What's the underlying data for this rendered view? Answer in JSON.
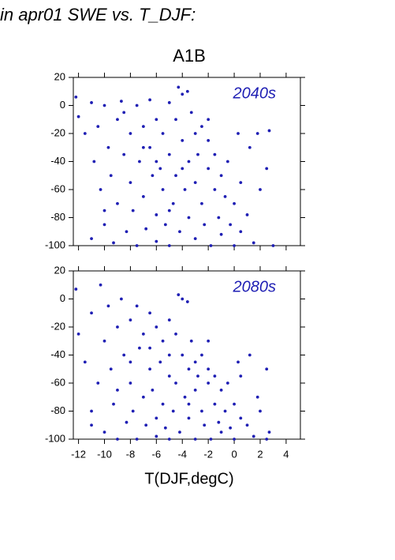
{
  "header": "in apr01 SWE vs. T_DJF:",
  "chart_data": [
    {
      "type": "scatter",
      "title": "A1B",
      "label": "2040s",
      "color": "#1f1fb4",
      "xlim": [
        -12.4,
        5.1
      ],
      "ylim": [
        -100,
        20
      ],
      "xticks": [
        -12,
        -10,
        -8,
        -6,
        -4,
        -2,
        0,
        2,
        4
      ],
      "yticks": [
        -100,
        -80,
        -60,
        -40,
        -20,
        0,
        20
      ],
      "xticklabels": false,
      "x": [
        -12.2,
        -12,
        -11.5,
        -11,
        -10.8,
        -10.5,
        -10.3,
        -10,
        -10,
        -9.7,
        -9.5,
        -9.3,
        -9,
        -9,
        -8.7,
        -8.5,
        -8.3,
        -8,
        -8,
        -7.8,
        -7.5,
        -7.5,
        -7.3,
        -7,
        -7,
        -6.8,
        -6.5,
        -6.5,
        -6.3,
        -6,
        -6,
        -6,
        -5.7,
        -5.5,
        -5.5,
        -5.3,
        -5,
        -5,
        -5,
        -4.7,
        -4.5,
        -4.5,
        -4.3,
        -4.2,
        -4,
        -4,
        -3.8,
        -3.6,
        -3.5,
        -3.5,
        -3.3,
        -3,
        -3,
        -3,
        -2.8,
        -2.5,
        -2.5,
        -2.3,
        -2,
        -2,
        -1.8,
        -1.5,
        -1.5,
        -1.2,
        -1,
        -1,
        -0.7,
        -0.5,
        -0.3,
        0,
        0,
        0.5,
        0.5,
        1,
        1.2,
        1.5,
        1.8,
        2,
        2.5,
        2.7,
        3,
        -11,
        -10,
        -8.5,
        -7,
        -6,
        -5,
        -4,
        -2,
        0.3
      ],
      "y": [
        6,
        -8,
        -20,
        2,
        -40,
        -15,
        -60,
        0,
        -85,
        -30,
        -50,
        -98,
        -10,
        -70,
        3,
        -35,
        -90,
        -20,
        -55,
        -75,
        0,
        -100,
        -40,
        -15,
        -65,
        -88,
        4,
        -30,
        -50,
        -10,
        -78,
        -97,
        -45,
        -20,
        -60,
        -85,
        2,
        -35,
        -100,
        -70,
        -10,
        -50,
        13,
        -90,
        -25,
        8,
        -60,
        10,
        -40,
        -80,
        -5,
        -20,
        -55,
        -95,
        -35,
        -70,
        -15,
        -85,
        -45,
        -25,
        -100,
        -60,
        -35,
        -80,
        -50,
        -92,
        -65,
        -40,
        -85,
        -70,
        -100,
        -55,
        -90,
        -78,
        -30,
        -98,
        -20,
        -60,
        -45,
        -18,
        -100,
        -95,
        -75,
        -5,
        -30,
        -40,
        -75,
        -45,
        -10,
        -20
      ]
    },
    {
      "type": "scatter",
      "label": "2080s",
      "color": "#1f1fb4",
      "xlabel": "T(DJF,degC)",
      "xlim": [
        -12.4,
        5.1
      ],
      "ylim": [
        -100,
        20
      ],
      "xticks": [
        -12,
        -10,
        -8,
        -6,
        -4,
        -2,
        0,
        2,
        4
      ],
      "yticks": [
        -100,
        -80,
        -60,
        -40,
        -20,
        0,
        20
      ],
      "xticklabels": true,
      "x": [
        -12.2,
        -12,
        -11.5,
        -11,
        -11,
        -10.5,
        -10.3,
        -10,
        -10,
        -9.7,
        -9.5,
        -9.3,
        -9,
        -9,
        -8.7,
        -8.5,
        -8.3,
        -8,
        -8,
        -7.8,
        -7.5,
        -7.5,
        -7.3,
        -7,
        -7,
        -6.8,
        -6.5,
        -6.5,
        -6.3,
        -6,
        -6,
        -6,
        -5.7,
        -5.5,
        -5.5,
        -5.3,
        -5,
        -5,
        -5,
        -4.7,
        -4.5,
        -4.5,
        -4.3,
        -4.2,
        -4,
        -4,
        -3.8,
        -3.6,
        -3.5,
        -3.5,
        -3.3,
        -3,
        -3,
        -3,
        -2.8,
        -2.5,
        -2.5,
        -2.3,
        -2,
        -2,
        -1.8,
        -1.5,
        -1.5,
        -1.2,
        -1,
        -1,
        -0.7,
        -0.5,
        -0.3,
        0,
        0,
        0.5,
        0.5,
        1,
        1.2,
        1.5,
        1.8,
        2,
        2.5,
        2.7,
        -11,
        -9,
        -8,
        -6.5,
        -5,
        -3.5,
        -2,
        0.3,
        2.5
      ],
      "y": [
        7,
        -25,
        -45,
        -10,
        -80,
        -60,
        10,
        -30,
        -95,
        -5,
        -50,
        -75,
        -20,
        -100,
        0,
        -40,
        -88,
        -15,
        -60,
        -80,
        -5,
        -100,
        -35,
        -25,
        -70,
        -90,
        -10,
        -50,
        -65,
        -20,
        -85,
        -98,
        -45,
        -30,
        -75,
        -92,
        -15,
        -55,
        -100,
        -80,
        -25,
        -60,
        3,
        -95,
        -40,
        0,
        -70,
        -2,
        -50,
        -85,
        -30,
        -45,
        -65,
        -100,
        -55,
        -80,
        -40,
        -90,
        -60,
        -50,
        -100,
        -75,
        -55,
        -88,
        -65,
        -95,
        -80,
        -60,
        -92,
        -75,
        -100,
        -85,
        -55,
        -90,
        -40,
        -98,
        -70,
        -80,
        -50,
        -95,
        -90,
        -65,
        -45,
        -35,
        -40,
        -75,
        -30,
        -45,
        -100
      ]
    }
  ]
}
